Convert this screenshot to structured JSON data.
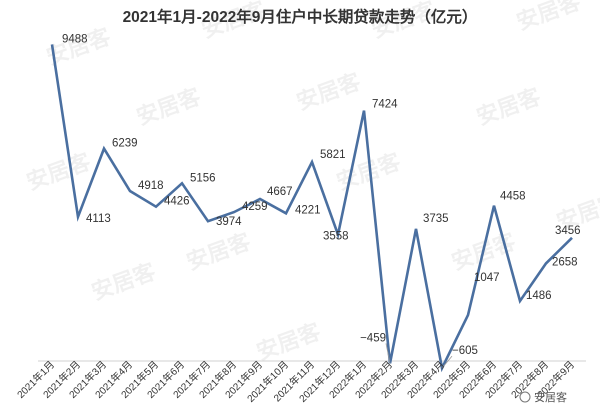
{
  "chart_data": {
    "type": "line",
    "title": "2021年1月-2022年9月住户中长期贷款走势（亿元）",
    "categories": [
      "2021年1月",
      "2021年2月",
      "2021年3月",
      "2021年4月",
      "2021年5月",
      "2021年6月",
      "2021年7月",
      "2021年8月",
      "2021年9月",
      "2021年10月",
      "2021年11月",
      "2021年12月",
      "2022年1月",
      "2022年2月",
      "2022年3月",
      "2022年4月",
      "2022年5月",
      "2022年6月",
      "2022年7月",
      "2022年8月",
      "2022年9月"
    ],
    "values": [
      9488,
      4113,
      6239,
      4918,
      4426,
      5156,
      3974,
      4259,
      4667,
      4221,
      5821,
      3558,
      7424,
      -459,
      3735,
      -605,
      1047,
      4458,
      1486,
      2658,
      3456
    ],
    "labels": [
      "9488",
      "4113",
      "6239",
      "4918",
      "4426",
      "5156",
      "3974",
      "4259",
      "4667",
      "4221",
      "5821",
      "3558",
      "7424",
      "−459",
      "3735",
      "−605",
      "1047",
      "4458",
      "1486",
      "2658",
      "3456"
    ],
    "color": "#4a6fa0",
    "grid": false,
    "legend": "none",
    "ylim": [
      -650,
      10000
    ]
  },
  "watermark": {
    "text": "安居客",
    "corner_text": "安居客"
  }
}
